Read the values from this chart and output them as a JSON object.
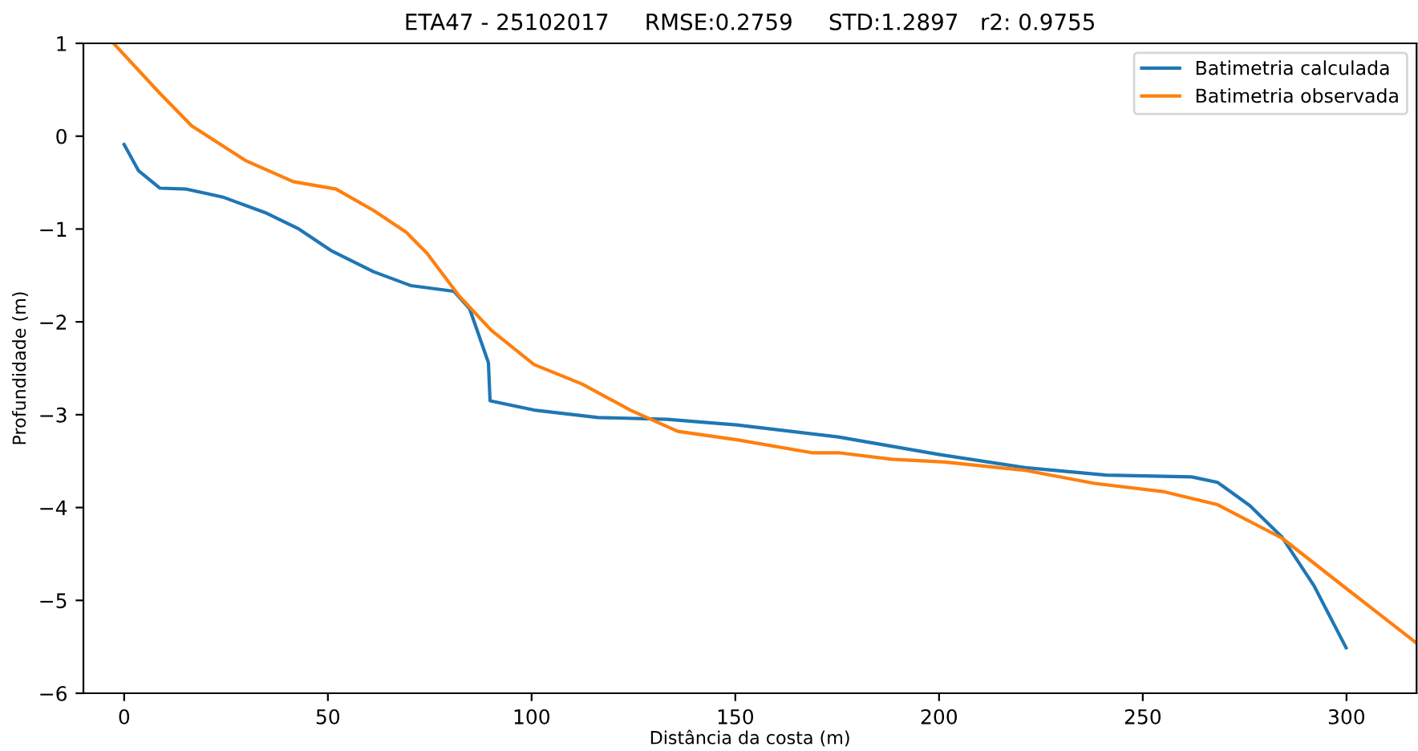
{
  "chart_data": {
    "type": "line",
    "title": "ETA47 - 25102017     RMSE:0.2759     STD:1.2897   r2: 0.9755",
    "xlabel": "Distância da costa (m)",
    "ylabel": "Profundidade (m)",
    "series": [
      {
        "name": "Batimetria calculada",
        "color": "#1f77b4",
        "x": [
          0,
          3.5,
          8.8,
          15.3,
          24.5,
          35,
          42.9,
          50.7,
          61.2,
          70.4,
          80.9,
          84.8,
          89.4,
          89.8,
          100.6,
          116.3,
          133.3,
          150.4,
          175.3,
          200.2,
          221.2,
          241,
          262,
          268.4,
          276.3,
          284.2,
          292,
          299.9
        ],
        "values": [
          -0.09,
          -0.37,
          -0.56,
          -0.57,
          -0.66,
          -0.83,
          -1.0,
          -1.23,
          -1.46,
          -1.61,
          -1.67,
          -1.86,
          -2.44,
          -2.85,
          -2.95,
          -3.03,
          -3.05,
          -3.11,
          -3.24,
          -3.43,
          -3.57,
          -3.65,
          -3.67,
          -3.73,
          -3.98,
          -4.32,
          -4.84,
          -5.51
        ]
      },
      {
        "name": "Batimetria observada",
        "color": "#ff7f0e",
        "x": [
          -2.6,
          8.8,
          16.6,
          29.7,
          41.5,
          52,
          61.2,
          69.1,
          74.3,
          82.2,
          90.1,
          100.6,
          112.4,
          124.2,
          135.9,
          150.4,
          168.8,
          175.3,
          188.4,
          201.5,
          221.2,
          238.2,
          255.3,
          268.4,
          284.2,
          299.9,
          317.2
        ],
        "values": [
          1,
          0.46,
          0.11,
          -0.26,
          -0.49,
          -0.57,
          -0.8,
          -1.03,
          -1.26,
          -1.72,
          -2.09,
          -2.46,
          -2.67,
          -2.95,
          -3.18,
          -3.27,
          -3.41,
          -3.41,
          -3.48,
          -3.51,
          -3.6,
          -3.74,
          -3.83,
          -3.97,
          -4.33,
          -4.87,
          -5.46
        ]
      }
    ],
    "xlim": [
      -10,
      317.2
    ],
    "ylim": [
      -6,
      1
    ],
    "xticks": [
      0,
      50,
      100,
      150,
      200,
      250,
      300
    ],
    "yticks": [
      -6,
      -5,
      -4,
      -3,
      -2,
      -1,
      0,
      1
    ],
    "grid": false,
    "legend": "top right",
    "marker": "none",
    "line_style": "solid"
  }
}
